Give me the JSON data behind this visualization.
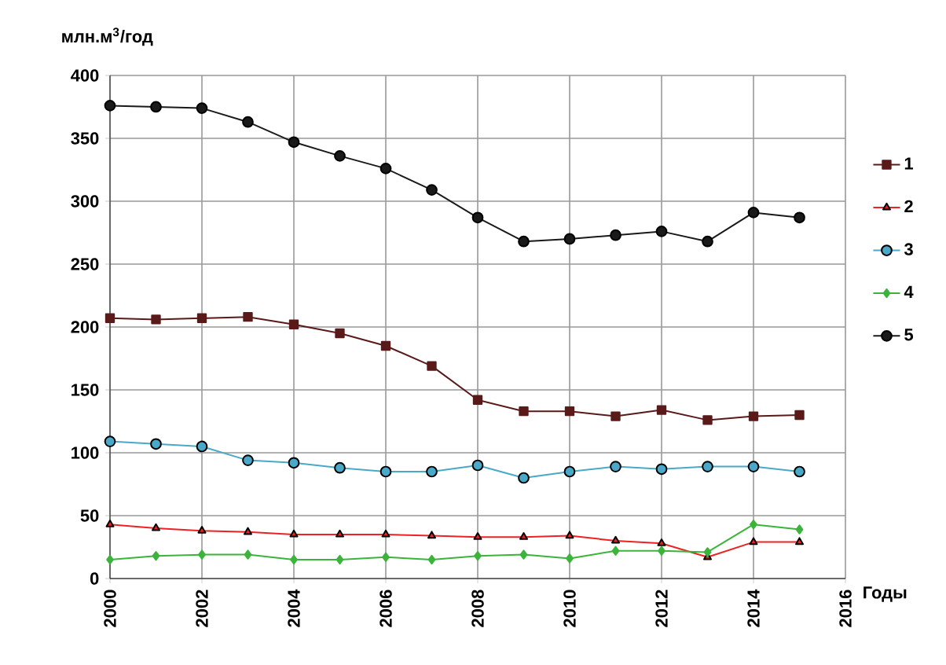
{
  "chart_data": {
    "type": "line",
    "ylabel": "млн.м$^{3}$/год",
    "xlabel": "Годы",
    "x": [
      2000,
      2001,
      2002,
      2003,
      2004,
      2005,
      2006,
      2007,
      2008,
      2009,
      2010,
      2011,
      2012,
      2013,
      2014,
      2015
    ],
    "xlim": [
      2000,
      2016
    ],
    "xticks": [
      2000,
      2002,
      2004,
      2006,
      2008,
      2010,
      2012,
      2014,
      2016
    ],
    "ylim": [
      0,
      400
    ],
    "yticks": [
      0,
      50,
      100,
      150,
      200,
      250,
      300,
      350,
      400
    ],
    "grid": true,
    "legend": "right",
    "series": [
      {
        "name": "1",
        "color": "#5a1a1a",
        "marker": "square",
        "values": [
          207,
          206,
          207,
          208,
          202,
          195,
          185,
          169,
          142,
          133,
          133,
          129,
          134,
          126,
          129,
          130
        ]
      },
      {
        "name": "2",
        "color": "#ee2222",
        "marker": "triangle",
        "values": [
          43,
          40,
          38,
          37,
          35,
          35,
          35,
          34,
          33,
          33,
          34,
          30,
          28,
          17,
          29,
          29
        ]
      },
      {
        "name": "3",
        "color": "#4aa8c8",
        "marker": "circle",
        "values": [
          109,
          107,
          105,
          94,
          92,
          88,
          85,
          85,
          90,
          80,
          85,
          89,
          87,
          89,
          89,
          85
        ]
      },
      {
        "name": "4",
        "color": "#3cb43c",
        "marker": "diamond",
        "values": [
          15,
          18,
          19,
          19,
          15,
          15,
          17,
          15,
          18,
          19,
          16,
          22,
          22,
          21,
          43,
          39
        ]
      },
      {
        "name": "5",
        "color": "#1a1a1a",
        "marker": "circle",
        "values": [
          376,
          375,
          374,
          363,
          347,
          336,
          326,
          309,
          287,
          268,
          270,
          273,
          276,
          268,
          291,
          287
        ]
      }
    ]
  }
}
